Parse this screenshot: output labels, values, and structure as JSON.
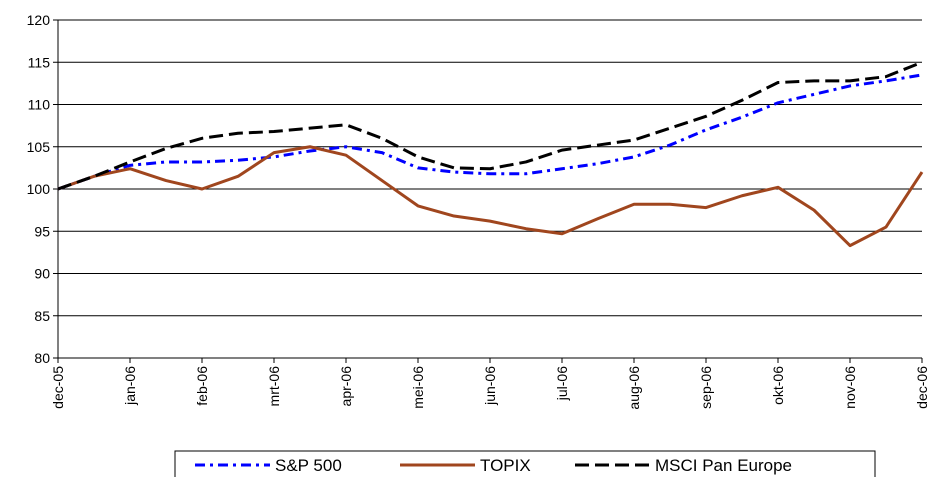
{
  "chart_data": {
    "type": "line",
    "categories": [
      "dec-05",
      null,
      "jan-06",
      null,
      "feb-06",
      null,
      "mrt-06",
      null,
      "apr-06",
      null,
      "mei-06",
      null,
      "jun-06",
      null,
      "jul-06",
      null,
      "aug-06",
      null,
      "sep-06",
      null,
      "okt-06",
      null,
      "nov-06",
      null,
      "dec-06"
    ],
    "series": [
      {
        "name": "S&P 500",
        "color": "#0000ff",
        "dash": "dash-dot",
        "values": [
          100,
          101.5,
          102.8,
          103.2,
          103.2,
          103.4,
          103.8,
          104.5,
          105,
          104.3,
          102.5,
          102,
          101.8,
          101.8,
          102.4,
          103,
          103.8,
          105.2,
          107,
          108.5,
          110.2,
          111.2,
          112.2,
          112.8,
          113.5
        ]
      },
      {
        "name": "TOPIX",
        "color": "#a0461e",
        "dash": "solid",
        "values": [
          100,
          101.5,
          102.4,
          101,
          100,
          101.5,
          104.3,
          105,
          104,
          101,
          98,
          96.8,
          96.2,
          95.3,
          94.7,
          96.5,
          98.2,
          98.2,
          97.8,
          99.2,
          100.2,
          97.5,
          93.3,
          95.5,
          102
        ]
      },
      {
        "name": "MSCI Pan Europe",
        "color": "#000000",
        "dash": "dash",
        "values": [
          100,
          101.5,
          103.2,
          104.8,
          106,
          106.6,
          106.8,
          107.2,
          107.6,
          106,
          103.8,
          102.5,
          102.4,
          103.2,
          104.6,
          105.2,
          105.8,
          107.2,
          108.6,
          110.5,
          112.6,
          112.8,
          112.8,
          113.3,
          115
        ]
      }
    ],
    "ylim": [
      80,
      120
    ],
    "yticks": [
      80,
      85,
      90,
      95,
      100,
      105,
      110,
      115,
      120
    ],
    "grid": true,
    "legend": "bottom"
  }
}
